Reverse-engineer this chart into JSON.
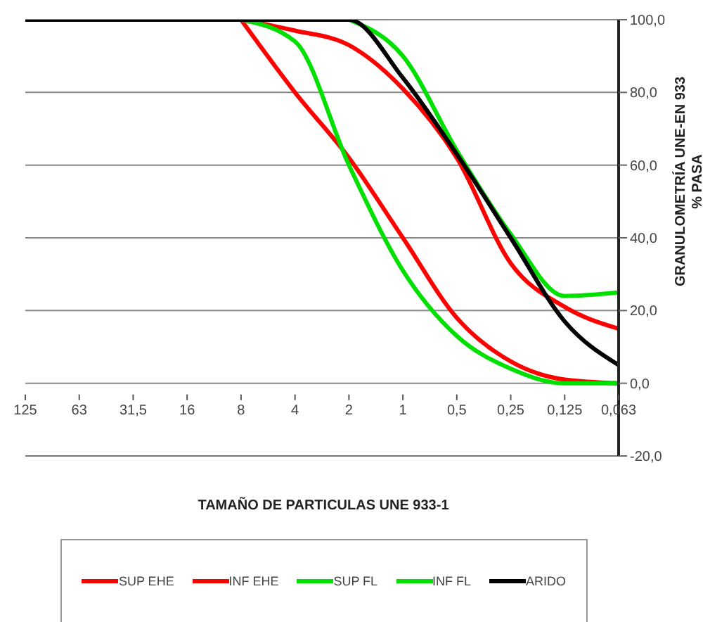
{
  "chart_data": {
    "type": "line",
    "xlabel": "TAMAÑO  DE PARTICULAS  UNE 933-1",
    "ylabel": "GRANULOMETRÍA UNE-EN 933\n% PASA",
    "categories": [
      "125",
      "63",
      "31,5",
      "16",
      "8",
      "4",
      "2",
      "1",
      "0,5",
      "0,25",
      "0,125",
      "0,063"
    ],
    "series": [
      {
        "name": "SUP EHE",
        "color": "#ff0000",
        "values": [
          null,
          null,
          null,
          null,
          100,
          97,
          93,
          81,
          62,
          33,
          21,
          15
        ]
      },
      {
        "name": "INF EHE",
        "color": "#ff0000",
        "values": [
          null,
          null,
          null,
          null,
          100,
          80,
          62,
          40,
          18,
          6,
          1,
          0
        ]
      },
      {
        "name": "SUP FL",
        "color": "#00e000",
        "values": [
          null,
          null,
          null,
          null,
          null,
          null,
          100,
          90,
          64,
          41,
          24,
          25
        ]
      },
      {
        "name": "INF FL",
        "color": "#00e000",
        "values": [
          null,
          null,
          null,
          null,
          100,
          94,
          60,
          31,
          13,
          4,
          0,
          0
        ]
      },
      {
        "name": "ARIDO",
        "color": "#000000",
        "values": [
          100,
          100,
          100,
          100,
          100,
          100,
          100,
          84,
          63,
          40,
          17,
          5
        ]
      }
    ],
    "ylim": [
      -20,
      100
    ],
    "yticks": [
      {
        "value": -20,
        "label": "-20,0"
      },
      {
        "value": 0,
        "label": "0,0"
      },
      {
        "value": 20,
        "label": "20,0"
      },
      {
        "value": 40,
        "label": "40,0"
      },
      {
        "value": 60,
        "label": "60,0"
      },
      {
        "value": 80,
        "label": "80,0"
      },
      {
        "value": 100,
        "label": "100,0"
      }
    ],
    "grid": "y",
    "legend": "bottom",
    "marker": "none",
    "line_style": "solid"
  }
}
